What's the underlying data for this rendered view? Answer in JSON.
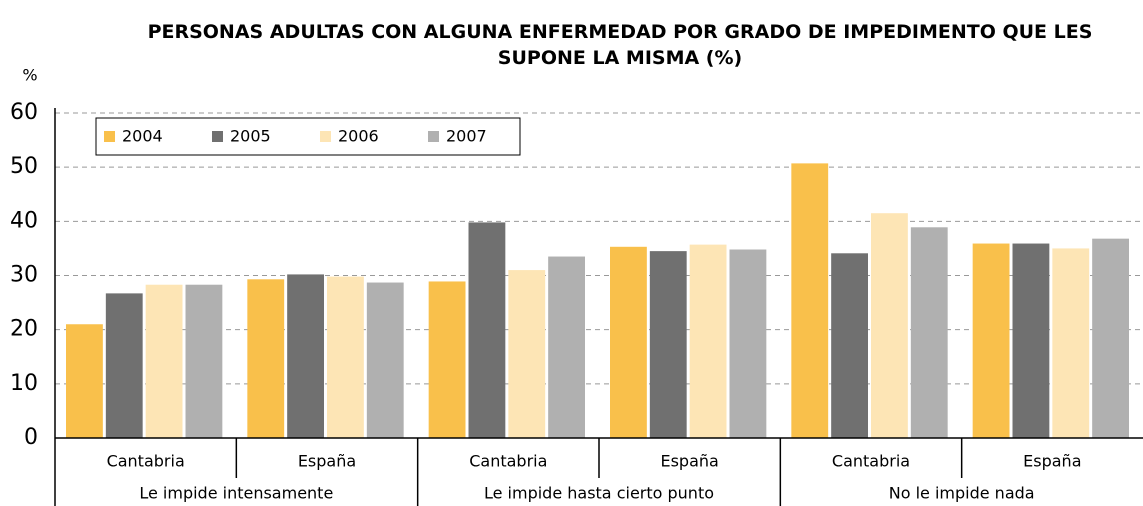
{
  "chart_data": {
    "type": "bar",
    "title": "PERSONAS ADULTAS CON ALGUNA ENFERMEDAD POR GRADO DE IMPEDIMENTO QUE LES SUPONE LA MISMA (%)",
    "y_label": "%",
    "categories": [
      "Cantabria",
      "España",
      "Cantabria",
      "España",
      "Cantabria",
      "España"
    ],
    "groups": [
      "Le impide intensamente",
      "Le impide hasta cierto punto",
      "No le impide nada"
    ],
    "series": [
      {
        "name": "2004",
        "color": "#f9c04b",
        "values": [
          21,
          29.3,
          28.9,
          35.3,
          50.7,
          35.9
        ]
      },
      {
        "name": "2005",
        "color": "#707070",
        "values": [
          26.7,
          30.2,
          39.8,
          34.5,
          34.1,
          35.9
        ]
      },
      {
        "name": "2006",
        "color": "#fde5b5",
        "values": [
          28.3,
          29.8,
          31,
          35.7,
          41.5,
          35
        ]
      },
      {
        "name": "2007",
        "color": "#b0b0b0",
        "values": [
          28.3,
          28.7,
          33.5,
          34.8,
          38.9,
          36.8
        ]
      }
    ],
    "ylim": [
      0,
      60
    ],
    "yticks": [
      0,
      10,
      20,
      30,
      40,
      50,
      60
    ],
    "grid": true,
    "legend": "top-left"
  }
}
